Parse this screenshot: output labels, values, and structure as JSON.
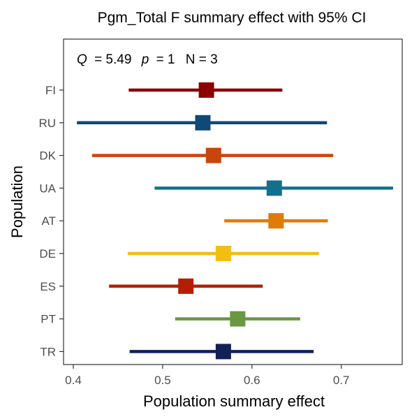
{
  "chart_data": {
    "type": "forest",
    "title": "Pgm_Total F summary effect with 95% CI",
    "xlabel": "Population summary effect",
    "ylabel": "Population",
    "xlim": [
      0.4,
      0.76
    ],
    "x_ticks": [
      0.4,
      0.5,
      0.6,
      0.7
    ],
    "x_tick_labels": [
      "0.4",
      "0.5",
      "0.6",
      "0.7"
    ],
    "grid": false,
    "annotation": {
      "q_symbol": "Q",
      "q_value": "= 5.49",
      "p_symbol": "p",
      "p_value": "= 1",
      "n_text": "N = 3"
    },
    "categories": [
      "FI",
      "RU",
      "DK",
      "UA",
      "AT",
      "DE",
      "ES",
      "PT",
      "TR"
    ],
    "estimates": [
      0.549,
      0.545,
      0.557,
      0.625,
      0.627,
      0.568,
      0.526,
      0.584,
      0.568
    ],
    "ci_lower": [
      0.462,
      0.404,
      0.421,
      0.491,
      0.569,
      0.461,
      0.44,
      0.514,
      0.463
    ],
    "ci_upper": [
      0.634,
      0.684,
      0.691,
      0.758,
      0.685,
      0.675,
      0.612,
      0.654,
      0.669
    ],
    "colors": [
      "#8b0000",
      "#0d4a7a",
      "#c9450c",
      "#12708f",
      "#e07b08",
      "#f2be12",
      "#b31f04",
      "#6a9741",
      "#112057"
    ]
  }
}
